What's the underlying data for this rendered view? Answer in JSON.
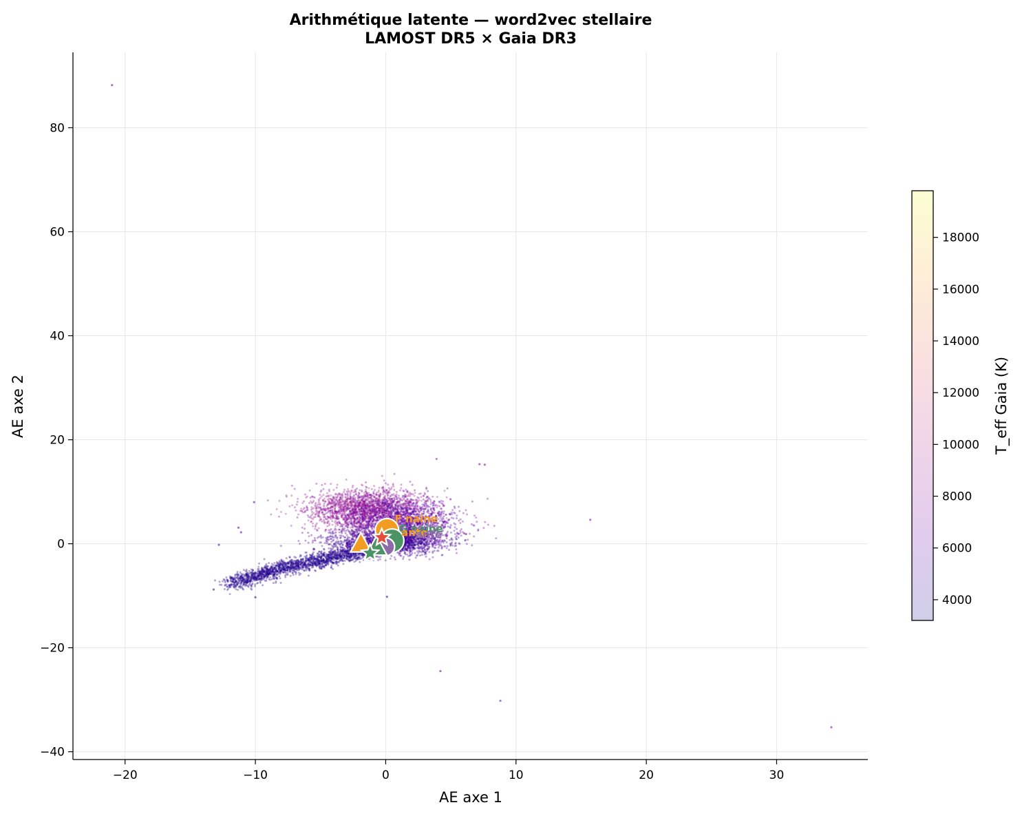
{
  "chart_data": {
    "type": "scatter",
    "title": "Arithmétique latente — word2vec stellaire",
    "subtitle": "LAMOST DR5 × Gaia DR3",
    "xlabel": "AE axe 1",
    "ylabel": "AE axe 2",
    "xlim": [
      -24,
      37
    ],
    "ylim": [
      -41.5,
      94.5
    ],
    "xticks": [
      -20,
      -10,
      0,
      10,
      20,
      30
    ],
    "yticks": [
      -40,
      -20,
      0,
      20,
      40,
      60,
      80
    ],
    "xtick_labels": [
      "−20",
      "−10",
      "0",
      "10",
      "20",
      "30"
    ],
    "ytick_labels": [
      "−40",
      "−20",
      "0",
      "20",
      "40",
      "60",
      "80"
    ],
    "grid": true,
    "colorbar": {
      "label": "T_eff Gaia (K)",
      "range": [
        3200,
        19800
      ],
      "ticks": [
        4000,
        6000,
        8000,
        10000,
        12000,
        14000,
        16000,
        18000
      ],
      "tick_labels": [
        "4000",
        "6000",
        "8000",
        "10000",
        "12000",
        "14000",
        "16000",
        "18000"
      ],
      "colors": [
        "#0d0887",
        "#6a00a8",
        "#b12a90",
        "#e16462",
        "#fca636",
        "#f0f921"
      ]
    },
    "clusters": [
      {
        "shape": "curved-band",
        "x_from": -12,
        "x_to": 2,
        "n": 2400,
        "teff": [
          3600,
          4600
        ]
      },
      {
        "shape": "blob",
        "center": [
          -1.5,
          6.5
        ],
        "spread": [
          2.2,
          2.0
        ],
        "n": 2000,
        "teff": [
          7000,
          10000
        ]
      },
      {
        "shape": "blob",
        "center": [
          1.5,
          4
        ],
        "spread": [
          2.0,
          2.4
        ],
        "n": 1500,
        "teff": [
          5000,
          7500
        ]
      },
      {
        "shape": "blob",
        "center": [
          0,
          0.5
        ],
        "spread": [
          2.2,
          1.2
        ],
        "n": 1500,
        "teff": [
          4200,
          6000
        ]
      }
    ],
    "outliers": [
      {
        "x": -21,
        "y": 88.2,
        "teff": 6500
      },
      {
        "x": 34.2,
        "y": -35.3,
        "teff": 6500
      },
      {
        "x": 8.8,
        "y": -30.2,
        "teff": 6000
      },
      {
        "x": 4.2,
        "y": -24.5,
        "teff": 6000
      },
      {
        "x": 15.7,
        "y": 4.6,
        "teff": 7000
      },
      {
        "x": 7.2,
        "y": 15.3,
        "teff": 7000
      },
      {
        "x": 7.6,
        "y": 15.2,
        "teff": 7000
      },
      {
        "x": 3.9,
        "y": 16.3,
        "teff": 9000
      },
      {
        "x": -10.1,
        "y": 8,
        "teff": 6000
      },
      {
        "x": -12.8,
        "y": -0.2,
        "teff": 5000
      },
      {
        "x": -13.2,
        "y": -8.8,
        "teff": 4000
      },
      {
        "x": -10,
        "y": -10.3,
        "teff": 4000
      },
      {
        "x": 0.1,
        "y": -10.2,
        "teff": 4500
      },
      {
        "x": -11.3,
        "y": 3.1,
        "teff": 5500
      },
      {
        "x": -11.1,
        "y": 2.2,
        "teff": 5500
      }
    ],
    "markers": [
      {
        "symbol": "circle",
        "x": 0.1,
        "y": 2.6,
        "color": "#f39c22",
        "size": 17
      },
      {
        "symbol": "circle",
        "x": 0.5,
        "y": 0.6,
        "color": "#4b9264",
        "size": 17
      },
      {
        "symbol": "circle",
        "x": 0,
        "y": -0.6,
        "color": "#8e6aa8",
        "size": 13
      },
      {
        "symbol": "triangle",
        "x": -1.9,
        "y": 0,
        "color": "#f39c22",
        "size": 16
      },
      {
        "symbol": "triangle",
        "x": -0.7,
        "y": -0.6,
        "color": "#4b9264",
        "size": 16
      },
      {
        "symbol": "star",
        "x": -0.3,
        "y": 1.2,
        "color": "#e74c3c",
        "size": 13
      },
      {
        "symbol": "star",
        "x": -1.2,
        "y": -1.8,
        "color": "#4b9264",
        "size": 13
      }
    ],
    "annotations": [
      {
        "text": "F naine",
        "x": 0.7,
        "y": 4.1,
        "color": "#f39c22"
      },
      {
        "text": "G naine",
        "x": 1,
        "y": 2.2,
        "color": "#4b9264"
      },
      {
        "text": "ante",
        "x": 1.2,
        "y": 1.5,
        "color": "#f39c22"
      },
      {
        "text": "ante",
        "x": 2.3,
        "y": 1.1,
        "color": "#8e6aa8"
      }
    ]
  }
}
